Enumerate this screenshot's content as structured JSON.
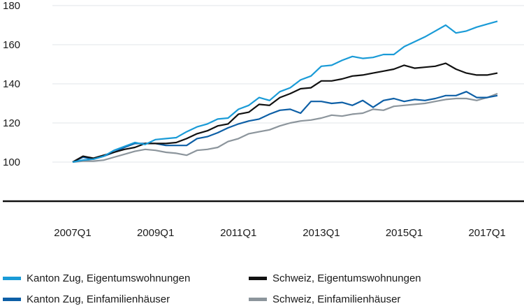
{
  "chart_data": {
    "type": "line",
    "x": [
      "2007Q1",
      "2007Q2",
      "2007Q3",
      "2007Q4",
      "2008Q1",
      "2008Q2",
      "2008Q3",
      "2008Q4",
      "2009Q1",
      "2009Q2",
      "2009Q3",
      "2009Q4",
      "2010Q1",
      "2010Q2",
      "2010Q3",
      "2010Q4",
      "2011Q1",
      "2011Q2",
      "2011Q3",
      "2011Q4",
      "2012Q1",
      "2012Q2",
      "2012Q3",
      "2012Q4",
      "2013Q1",
      "2013Q2",
      "2013Q3",
      "2013Q4",
      "2014Q1",
      "2014Q2",
      "2014Q3",
      "2014Q4",
      "2015Q1",
      "2015Q2",
      "2015Q3",
      "2015Q4",
      "2016Q1",
      "2016Q2",
      "2016Q3",
      "2016Q4",
      "2017Q1",
      "2017Q2"
    ],
    "xticks": [
      "2007Q1",
      "2009Q1",
      "2011Q1",
      "2013Q1",
      "2015Q1",
      "2017Q1"
    ],
    "yticks": [
      100,
      120,
      140,
      160,
      180
    ],
    "ylim": [
      80,
      180
    ],
    "series": [
      {
        "name": "Kanton Zug, Eigentumswohnungen",
        "color": "#1a9bd7",
        "values": [
          100,
          101,
          101.5,
          103,
          106,
          108,
          110,
          109,
          111.5,
          112,
          112.5,
          115.5,
          118,
          119.5,
          122,
          122.5,
          127,
          129,
          133,
          131.5,
          136,
          138,
          142,
          144,
          149,
          149.5,
          152,
          154,
          153,
          153.5,
          155,
          155,
          159,
          161.5,
          164,
          167,
          170,
          166,
          167,
          169,
          170.5,
          172
        ]
      },
      {
        "name": "Schweiz, Eigentumswohnungen",
        "color": "#111111",
        "values": [
          100,
          103,
          102,
          103.5,
          105,
          106.5,
          107.5,
          109.5,
          109.5,
          109.5,
          110,
          112,
          114.5,
          116,
          118.5,
          119.5,
          124.5,
          125.5,
          129.5,
          129,
          133,
          135,
          137.5,
          138,
          141.5,
          141.5,
          142.5,
          144,
          144.5,
          145.5,
          146.5,
          147.5,
          149.5,
          148,
          148.5,
          149,
          150.5,
          147.5,
          145.5,
          144.5,
          144.5,
          145.5
        ]
      },
      {
        "name": "Kanton Zug, Einfamilienhäuser",
        "color": "#0d5fa6",
        "values": [
          100,
          102.5,
          101.5,
          103,
          105,
          107.5,
          109.5,
          109.5,
          109.5,
          108.5,
          108.5,
          108.5,
          112,
          113,
          115,
          117.5,
          119.5,
          121,
          122,
          124.5,
          126.5,
          127,
          125,
          131,
          131,
          130,
          130.5,
          129,
          131.5,
          128,
          131.5,
          132.5,
          131,
          132,
          131.5,
          132.5,
          134,
          134,
          136,
          133,
          133,
          134
        ]
      },
      {
        "name": "Schweiz, Einfamilienhäuser",
        "color": "#8c959c",
        "values": [
          100,
          100.5,
          100.5,
          101,
          102.5,
          104,
          105.5,
          106.5,
          106,
          105,
          104.5,
          103.5,
          106,
          106.5,
          107.5,
          110.5,
          112,
          114.5,
          115.5,
          116.5,
          118.5,
          120,
          121,
          121.5,
          122.5,
          124,
          123.5,
          124.5,
          125,
          127,
          126.5,
          128.5,
          129,
          129.5,
          130,
          131,
          132,
          132.5,
          132.5,
          131.5,
          133,
          135
        ]
      }
    ]
  }
}
